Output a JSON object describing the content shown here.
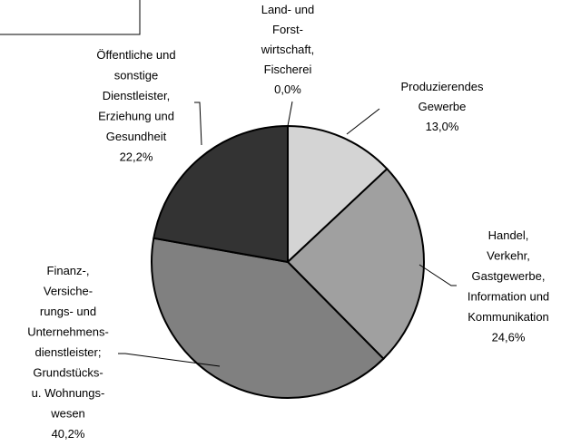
{
  "chart_data": {
    "type": "pie",
    "categories": [
      [
        "Land- und",
        "Forst-",
        "wirtschaft,",
        "Fischerei"
      ],
      [
        "Produzierendes",
        "Gewerbe"
      ],
      [
        "Handel,",
        "Verkehr,",
        "Gastgewerbe,",
        "Information und",
        "Kommunikation"
      ],
      [
        "Finanz-,",
        "Versiche-",
        "rungs- und",
        "Unternehmens-",
        "dienstleister;",
        "Grundstücks-",
        "u. Wohnungs-",
        "wesen"
      ],
      [
        "Öffentliche und",
        "sonstige",
        "Dienstleister,",
        "Erziehung und",
        "Gesundheit"
      ]
    ],
    "values": [
      0.0,
      13.0,
      24.6,
      40.2,
      22.2
    ],
    "value_labels": [
      "0,0%",
      "13,0%",
      "24,6%",
      "40,2%",
      "22,2%"
    ],
    "colors": [
      "#ffffff",
      "#d4d4d4",
      "#a0a0a0",
      "#808080",
      "#333333"
    ]
  }
}
